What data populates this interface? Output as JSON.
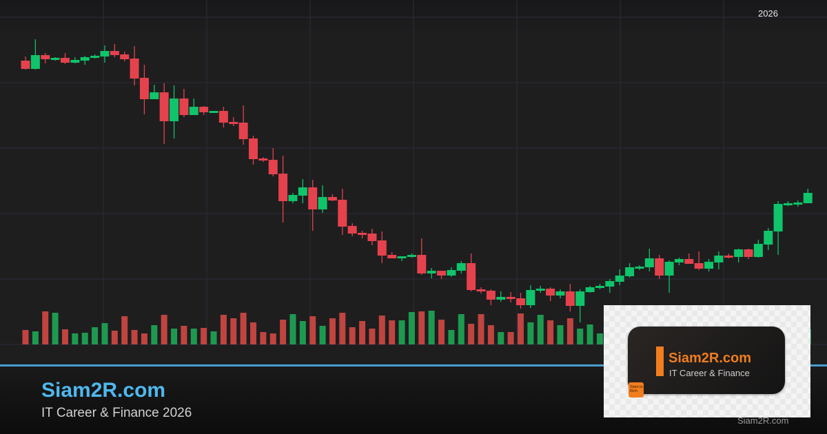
{
  "header": {
    "year": "2026"
  },
  "footer": {
    "brand": "Siam2R.com",
    "tagline": "IT Career & Finance 2026"
  },
  "logo": {
    "title": "Siam2R.com",
    "subtitle": "IT Career & Finance",
    "badge": "Siam to Rich",
    "watermark": "Siam2R.com"
  },
  "colors": {
    "up": "#0fc46a",
    "down": "#e5424d",
    "volume_up": "#1e9a50",
    "volume_down": "#c0443f",
    "accent": "#4a9fd0",
    "brand": "#4fb8ee",
    "logo_orange": "#f07d1e",
    "background": "#1e1e1f",
    "grid": "#2c2c3a"
  },
  "chart_data": {
    "type": "candlestick",
    "title": "",
    "xlabel": "",
    "ylabel": "",
    "ylim": [
      0,
      50
    ],
    "grid": true,
    "legend": "none",
    "ohlc": [
      [
        41.2,
        41.8,
        39.9,
        40.0
      ],
      [
        40.0,
        44.3,
        39.9,
        42.0
      ],
      [
        42.0,
        42.3,
        40.8,
        41.4
      ],
      [
        41.3,
        41.7,
        41.2,
        41.6
      ],
      [
        41.6,
        42.3,
        40.7,
        40.9
      ],
      [
        40.9,
        41.7,
        40.8,
        41.3
      ],
      [
        41.2,
        41.9,
        40.6,
        41.7
      ],
      [
        41.6,
        42.1,
        41.5,
        41.9
      ],
      [
        41.8,
        43.4,
        40.9,
        42.6
      ],
      [
        42.6,
        43.6,
        41.7,
        42.0
      ],
      [
        42.1,
        42.5,
        41.1,
        41.4
      ],
      [
        41.5,
        43.3,
        37.6,
        38.6
      ],
      [
        38.7,
        40.6,
        33.4,
        35.6
      ],
      [
        35.6,
        37.7,
        35.6,
        36.6
      ],
      [
        36.6,
        37.9,
        29.1,
        32.4
      ],
      [
        32.4,
        37.6,
        29.9,
        35.7
      ],
      [
        35.7,
        37.1,
        33.0,
        33.3
      ],
      [
        33.3,
        35.7,
        33.3,
        34.5
      ],
      [
        34.5,
        34.6,
        33.3,
        33.7
      ],
      [
        33.6,
        33.9,
        33.6,
        33.9
      ],
      [
        33.9,
        34.5,
        31.5,
        32.2
      ],
      [
        32.3,
        33.0,
        31.7,
        32.0
      ],
      [
        32.2,
        34.7,
        29.0,
        29.8
      ],
      [
        29.9,
        30.3,
        26.1,
        26.9
      ],
      [
        27.0,
        27.2,
        26.5,
        26.7
      ],
      [
        26.8,
        28.5,
        24.4,
        24.7
      ],
      [
        24.8,
        27.4,
        17.7,
        20.8
      ],
      [
        20.8,
        22.0,
        20.5,
        21.7
      ],
      [
        21.6,
        24.0,
        20.5,
        22.8
      ],
      [
        22.8,
        23.9,
        16.5,
        19.6
      ],
      [
        19.6,
        23.1,
        19.1,
        21.4
      ],
      [
        21.4,
        21.8,
        20.8,
        20.9
      ],
      [
        21.0,
        22.6,
        15.9,
        17.1
      ],
      [
        17.2,
        17.6,
        15.7,
        16.1
      ],
      [
        16.2,
        16.5,
        15.4,
        15.9
      ],
      [
        16.1,
        16.8,
        14.4,
        15.0
      ],
      [
        15.1,
        16.4,
        11.8,
        12.9
      ],
      [
        13.0,
        13.4,
        12.5,
        12.5
      ],
      [
        12.5,
        12.8,
        12.1,
        12.8
      ],
      [
        12.7,
        13.2,
        12.6,
        13.0
      ],
      [
        13.0,
        15.4,
        10.1,
        10.3
      ],
      [
        10.3,
        11.1,
        9.6,
        10.7
      ],
      [
        10.7,
        10.7,
        9.5,
        10.0
      ],
      [
        10.0,
        11.2,
        9.8,
        10.8
      ],
      [
        10.7,
        12.1,
        10.3,
        11.8
      ],
      [
        11.8,
        13.2,
        7.7,
        7.9
      ],
      [
        8.0,
        8.3,
        7.4,
        7.7
      ],
      [
        7.8,
        8.0,
        5.7,
        6.5
      ],
      [
        6.5,
        7.7,
        6.2,
        6.9
      ],
      [
        6.9,
        7.6,
        6.1,
        6.6
      ],
      [
        6.7,
        7.5,
        5.2,
        5.7
      ],
      [
        5.7,
        8.6,
        5.3,
        7.9
      ],
      [
        7.8,
        8.5,
        7.5,
        8.1
      ],
      [
        8.1,
        8.3,
        6.3,
        7.1
      ],
      [
        7.1,
        8.0,
        6.7,
        7.7
      ],
      [
        7.7,
        8.8,
        4.8,
        5.6
      ],
      [
        5.6,
        8.0,
        3.2,
        7.7
      ],
      [
        7.6,
        8.5,
        7.5,
        8.3
      ],
      [
        8.2,
        8.8,
        8.0,
        8.5
      ],
      [
        8.4,
        9.5,
        7.5,
        9.2
      ],
      [
        9.1,
        10.9,
        8.6,
        10.0
      ],
      [
        9.9,
        11.8,
        9.7,
        11.2
      ],
      [
        11.0,
        11.5,
        10.8,
        11.3
      ],
      [
        11.2,
        13.9,
        10.6,
        12.5
      ],
      [
        12.5,
        13.0,
        9.5,
        10.0
      ],
      [
        10.0,
        12.2,
        7.5,
        12.0
      ],
      [
        11.9,
        12.6,
        11.5,
        12.4
      ],
      [
        12.4,
        13.2,
        11.7,
        11.7
      ],
      [
        11.8,
        13.5,
        10.8,
        11.0
      ],
      [
        11.0,
        12.4,
        10.6,
        12.0
      ],
      [
        11.9,
        13.5,
        10.9,
        12.9
      ],
      [
        12.9,
        13.2,
        12.5,
        12.6
      ],
      [
        12.7,
        13.9,
        11.9,
        13.8
      ],
      [
        13.8,
        13.9,
        12.4,
        12.7
      ],
      [
        12.7,
        15.2,
        12.6,
        14.6
      ],
      [
        14.5,
        16.9,
        13.7,
        16.5
      ],
      [
        16.4,
        20.8,
        13.0,
        20.4
      ],
      [
        20.2,
        20.8,
        20.1,
        20.5
      ],
      [
        20.3,
        20.9,
        20.0,
        20.6
      ],
      [
        20.5,
        22.6,
        20.5,
        22.0
      ]
    ],
    "volume": [
      21,
      19,
      48,
      46,
      22,
      16,
      17,
      25,
      31,
      20,
      41,
      21,
      16,
      28,
      43,
      23,
      27,
      23,
      24,
      19,
      43,
      38,
      46,
      32,
      18,
      16,
      36,
      44,
      34,
      41,
      27,
      38,
      46,
      25,
      34,
      23,
      42,
      35,
      35,
      47,
      48,
      49,
      36,
      21,
      44,
      30,
      44,
      28,
      18,
      18,
      45,
      32,
      43,
      35,
      28,
      38,
      23,
      29,
      16,
      null,
      null,
      null,
      null,
      null,
      null,
      null,
      null,
      null,
      null,
      null,
      null,
      null,
      null,
      null,
      null,
      null,
      null,
      null,
      null,
      22
    ]
  }
}
